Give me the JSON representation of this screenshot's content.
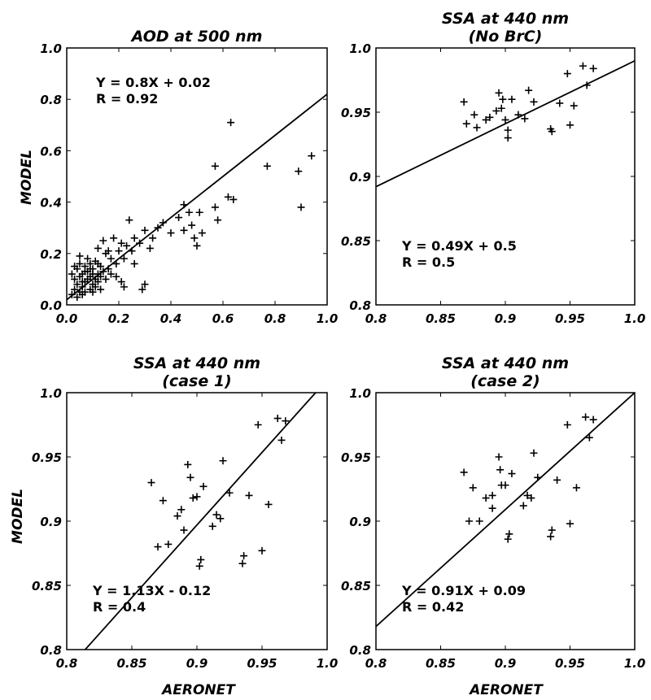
{
  "figure": {
    "shared_xlabel": "AERONET",
    "shared_ylabel": "MODEL"
  },
  "chart_data": [
    {
      "id": "aod",
      "type": "scatter",
      "title": [
        "AOD at 500 nm"
      ],
      "xlabel": "",
      "ylabel": "MODEL",
      "xlim": [
        0.0,
        1.0
      ],
      "ylim": [
        0.0,
        1.0
      ],
      "xticks": [
        "0.0",
        "0.2",
        "0.4",
        "0.6",
        "0.8",
        "1.0"
      ],
      "yticks": [
        "0.0",
        "0.2",
        "0.4",
        "0.6",
        "0.8",
        "1.0"
      ],
      "fit": {
        "slope": 0.8,
        "intercept": 0.02
      },
      "annotation": [
        "Y = 0.8X + 0.02",
        "R = 0.92"
      ],
      "annotation_pos": "top-left",
      "marker": "+",
      "points": [
        [
          0.02,
          0.04
        ],
        [
          0.03,
          0.06
        ],
        [
          0.03,
          0.1
        ],
        [
          0.04,
          0.03
        ],
        [
          0.04,
          0.08
        ],
        [
          0.04,
          0.14
        ],
        [
          0.05,
          0.05
        ],
        [
          0.05,
          0.11
        ],
        [
          0.05,
          0.16
        ],
        [
          0.06,
          0.04
        ],
        [
          0.06,
          0.07
        ],
        [
          0.06,
          0.12
        ],
        [
          0.07,
          0.09
        ],
        [
          0.07,
          0.15
        ],
        [
          0.07,
          0.05
        ],
        [
          0.08,
          0.1
        ],
        [
          0.08,
          0.13
        ],
        [
          0.08,
          0.18
        ],
        [
          0.09,
          0.06
        ],
        [
          0.09,
          0.11
        ],
        [
          0.09,
          0.16
        ],
        [
          0.1,
          0.08
        ],
        [
          0.1,
          0.12
        ],
        [
          0.1,
          0.14
        ],
        [
          0.11,
          0.1
        ],
        [
          0.11,
          0.07
        ],
        [
          0.11,
          0.17
        ],
        [
          0.12,
          0.12
        ],
        [
          0.12,
          0.09
        ],
        [
          0.12,
          0.22
        ],
        [
          0.13,
          0.11
        ],
        [
          0.13,
          0.15
        ],
        [
          0.14,
          0.13
        ],
        [
          0.14,
          0.25
        ],
        [
          0.15,
          0.1
        ],
        [
          0.15,
          0.2
        ],
        [
          0.16,
          0.14
        ],
        [
          0.17,
          0.12
        ],
        [
          0.17,
          0.18
        ],
        [
          0.18,
          0.26
        ],
        [
          0.19,
          0.16
        ],
        [
          0.19,
          0.11
        ],
        [
          0.2,
          0.21
        ],
        [
          0.21,
          0.09
        ],
        [
          0.21,
          0.24
        ],
        [
          0.22,
          0.18
        ],
        [
          0.22,
          0.07
        ],
        [
          0.23,
          0.23
        ],
        [
          0.24,
          0.33
        ],
        [
          0.25,
          0.21
        ],
        [
          0.26,
          0.16
        ],
        [
          0.26,
          0.26
        ],
        [
          0.28,
          0.24
        ],
        [
          0.29,
          0.06
        ],
        [
          0.3,
          0.29
        ],
        [
          0.3,
          0.08
        ],
        [
          0.32,
          0.22
        ],
        [
          0.33,
          0.26
        ],
        [
          0.35,
          0.3
        ],
        [
          0.37,
          0.32
        ],
        [
          0.4,
          0.28
        ],
        [
          0.43,
          0.34
        ],
        [
          0.45,
          0.39
        ],
        [
          0.45,
          0.29
        ],
        [
          0.47,
          0.36
        ],
        [
          0.48,
          0.31
        ],
        [
          0.49,
          0.26
        ],
        [
          0.5,
          0.23
        ],
        [
          0.51,
          0.36
        ],
        [
          0.52,
          0.28
        ],
        [
          0.57,
          0.54
        ],
        [
          0.57,
          0.38
        ],
        [
          0.58,
          0.33
        ],
        [
          0.62,
          0.42
        ],
        [
          0.63,
          0.71
        ],
        [
          0.64,
          0.41
        ],
        [
          0.77,
          0.54
        ],
        [
          0.89,
          0.52
        ],
        [
          0.9,
          0.38
        ],
        [
          0.94,
          0.58
        ],
        [
          0.02,
          0.12
        ],
        [
          0.03,
          0.15
        ],
        [
          0.05,
          0.19
        ],
        [
          0.06,
          0.09
        ],
        [
          0.07,
          0.13
        ],
        [
          0.09,
          0.14
        ],
        [
          0.1,
          0.05
        ],
        [
          0.12,
          0.16
        ],
        [
          0.13,
          0.06
        ],
        [
          0.16,
          0.21
        ]
      ]
    },
    {
      "id": "ssa_nobrc",
      "type": "scatter",
      "title": [
        "SSA at 440 nm",
        "(No BrC)"
      ],
      "xlabel": "",
      "ylabel": "",
      "xlim": [
        0.8,
        1.0
      ],
      "ylim": [
        0.8,
        1.0
      ],
      "xticks": [
        "0.8",
        "0.85",
        "0.9",
        "0.95",
        "1.0"
      ],
      "yticks": [
        "0.8",
        "0.85",
        "0.9",
        "0.95",
        "1.0"
      ],
      "fit": {
        "slope": 0.49,
        "intercept": 0.5
      },
      "annotation": [
        "Y = 0.49X + 0.5",
        "R = 0.5"
      ],
      "annotation_pos": "bottom-left",
      "marker": "+",
      "points": [
        [
          0.868,
          0.958
        ],
        [
          0.87,
          0.941
        ],
        [
          0.876,
          0.948
        ],
        [
          0.885,
          0.944
        ],
        [
          0.888,
          0.946
        ],
        [
          0.895,
          0.965
        ],
        [
          0.897,
          0.953
        ],
        [
          0.898,
          0.96
        ],
        [
          0.9,
          0.944
        ],
        [
          0.902,
          0.936
        ],
        [
          0.902,
          0.93
        ],
        [
          0.905,
          0.96
        ],
        [
          0.91,
          0.948
        ],
        [
          0.915,
          0.945
        ],
        [
          0.918,
          0.967
        ],
        [
          0.922,
          0.958
        ],
        [
          0.935,
          0.937
        ],
        [
          0.936,
          0.935
        ],
        [
          0.942,
          0.957
        ],
        [
          0.948,
          0.98
        ],
        [
          0.95,
          0.94
        ],
        [
          0.953,
          0.955
        ],
        [
          0.96,
          0.986
        ],
        [
          0.963,
          0.971
        ],
        [
          0.968,
          0.984
        ],
        [
          0.878,
          0.938
        ],
        [
          0.893,
          0.951
        ]
      ]
    },
    {
      "id": "ssa_case1",
      "type": "scatter",
      "title": [
        "SSA at 440 nm",
        "(case 1)"
      ],
      "xlabel": "AERONET",
      "ylabel": "MODEL",
      "xlim": [
        0.8,
        1.0
      ],
      "ylim": [
        0.8,
        1.0
      ],
      "xticks": [
        "0.8",
        "0.85",
        "0.9",
        "0.95",
        "1.0"
      ],
      "yticks": [
        "0.8",
        "0.85",
        "0.9",
        "0.95",
        "1.0"
      ],
      "fit": {
        "slope": 1.13,
        "intercept": -0.12
      },
      "annotation": [
        "Y = 1.13X - 0.12",
        "R = 0.4"
      ],
      "annotation_pos": "bottom-left",
      "marker": "+",
      "points": [
        [
          0.865,
          0.93
        ],
        [
          0.87,
          0.88
        ],
        [
          0.874,
          0.916
        ],
        [
          0.878,
          0.882
        ],
        [
          0.885,
          0.904
        ],
        [
          0.888,
          0.909
        ],
        [
          0.89,
          0.893
        ],
        [
          0.893,
          0.944
        ],
        [
          0.895,
          0.934
        ],
        [
          0.897,
          0.918
        ],
        [
          0.9,
          0.919
        ],
        [
          0.902,
          0.865
        ],
        [
          0.903,
          0.87
        ],
        [
          0.905,
          0.927
        ],
        [
          0.912,
          0.896
        ],
        [
          0.915,
          0.905
        ],
        [
          0.918,
          0.902
        ],
        [
          0.92,
          0.947
        ],
        [
          0.925,
          0.922
        ],
        [
          0.935,
          0.867
        ],
        [
          0.936,
          0.873
        ],
        [
          0.94,
          0.92
        ],
        [
          0.947,
          0.975
        ],
        [
          0.95,
          0.877
        ],
        [
          0.955,
          0.913
        ],
        [
          0.962,
          0.98
        ],
        [
          0.965,
          0.963
        ],
        [
          0.968,
          0.978
        ]
      ]
    },
    {
      "id": "ssa_case2",
      "type": "scatter",
      "title": [
        "SSA at 440 nm",
        "(case 2)"
      ],
      "xlabel": "AERONET",
      "ylabel": "",
      "xlim": [
        0.8,
        1.0
      ],
      "ylim": [
        0.8,
        1.0
      ],
      "xticks": [
        "0.8",
        "0.85",
        "0.9",
        "0.95",
        "1.0"
      ],
      "yticks": [
        "0.8",
        "0.85",
        "0.9",
        "0.95",
        "1.0"
      ],
      "fit": {
        "slope": 0.91,
        "intercept": 0.09
      },
      "annotation": [
        "Y = 0.91X + 0.09",
        "R = 0.42"
      ],
      "annotation_pos": "bottom-left",
      "marker": "+",
      "points": [
        [
          0.868,
          0.938
        ],
        [
          0.872,
          0.9
        ],
        [
          0.875,
          0.926
        ],
        [
          0.88,
          0.9
        ],
        [
          0.885,
          0.918
        ],
        [
          0.89,
          0.92
        ],
        [
          0.89,
          0.91
        ],
        [
          0.895,
          0.95
        ],
        [
          0.896,
          0.94
        ],
        [
          0.897,
          0.928
        ],
        [
          0.9,
          0.928
        ],
        [
          0.902,
          0.886
        ],
        [
          0.903,
          0.89
        ],
        [
          0.905,
          0.937
        ],
        [
          0.914,
          0.912
        ],
        [
          0.917,
          0.92
        ],
        [
          0.92,
          0.918
        ],
        [
          0.922,
          0.953
        ],
        [
          0.925,
          0.934
        ],
        [
          0.935,
          0.888
        ],
        [
          0.936,
          0.893
        ],
        [
          0.94,
          0.932
        ],
        [
          0.948,
          0.975
        ],
        [
          0.95,
          0.898
        ],
        [
          0.955,
          0.926
        ],
        [
          0.962,
          0.981
        ],
        [
          0.965,
          0.965
        ],
        [
          0.968,
          0.979
        ]
      ]
    }
  ]
}
